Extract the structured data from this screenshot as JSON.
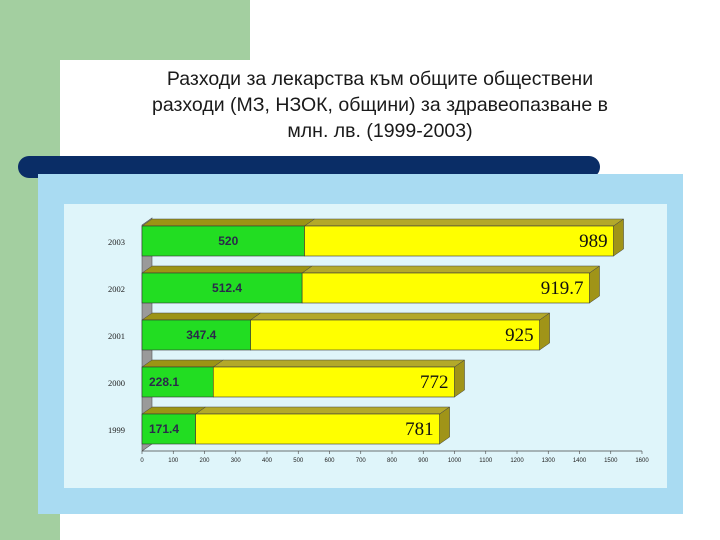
{
  "slide": {
    "title_lines": [
      "Разходи за лекарства към общите обществени",
      "разходи (МЗ, НЗОК, общини) за здравеопазване  в",
      "млн. лв. (1999-2003)"
    ]
  },
  "colors": {
    "sidebar_green": "#a3cfa0",
    "title_bar_navy": "#0a2d66",
    "outer_panel_blue": "#a9dbf2",
    "plot_panel_cyan": "#dff5fa",
    "bar_green": "#22dd22",
    "bar_yellow": "#ffff00",
    "bar_depth": "#a09418"
  },
  "chart_data": {
    "type": "bar",
    "orientation": "horizontal",
    "stacked": true,
    "categories": [
      "2003",
      "2002",
      "2001",
      "2000",
      "1999"
    ],
    "series": [
      {
        "values": [
          520,
          512.4,
          347.4,
          228.1,
          171.4
        ]
      },
      {
        "values": [
          989,
          919.7,
          925,
          772,
          781
        ]
      }
    ],
    "xlim": [
      0,
      1600
    ],
    "xticks": [
      "0",
      "100",
      "200",
      "300",
      "400",
      "500",
      "600",
      "700",
      "800",
      "900",
      "1000",
      "1100",
      "1200",
      "1300",
      "1400",
      "1500",
      "1600"
    ],
    "legend": "none",
    "grid": false
  }
}
